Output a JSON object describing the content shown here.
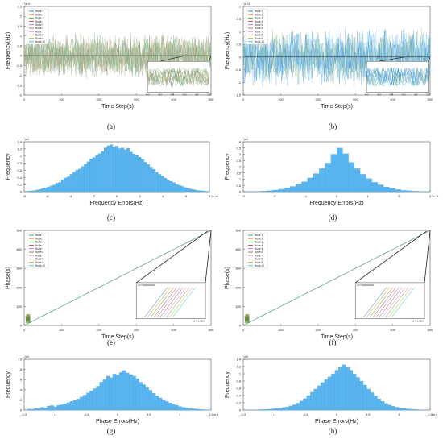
{
  "panels": [
    {
      "id": "a",
      "caption": "(a)",
      "type": "line",
      "xlabel": "Time Step(s)",
      "ylabel": "Frequency(Hz)",
      "xticks": [
        "0",
        "100",
        "200",
        "300",
        "400",
        "500"
      ],
      "yticks": [
        "2.5",
        "2",
        "1.5",
        "1",
        "0.5",
        "0",
        "-0.5",
        "-1",
        "-1.5",
        "-2"
      ],
      "exponent": "1e-9",
      "legend": [
        "Node 1",
        "Node 2",
        "Node 3",
        "Node 4",
        "Node 5",
        "Node 6",
        "Node 7",
        "Node 8",
        "Node 9",
        "Node 10"
      ],
      "inset_xticks": [
        "400",
        "420",
        "440",
        "460",
        "480",
        "500"
      ]
    },
    {
      "id": "b",
      "caption": "(b)",
      "type": "line",
      "xlabel": "Time Step(s)",
      "ylabel": "Frequency(Hz)",
      "xticks": [
        "0",
        "100",
        "200",
        "300",
        "400",
        "500"
      ],
      "yticks": [
        "2",
        "1.5",
        "1",
        "0.5",
        "0",
        "-0.5",
        "-1",
        "-1.5"
      ],
      "exponent": "1e-11",
      "legend": [
        "Node 1",
        "Node 2",
        "Node 3",
        "Node 4",
        "Node 5",
        "Node 6",
        "Node 7",
        "Node 8",
        "Node 9",
        "Node 10"
      ],
      "inset_xticks": [
        "400",
        "420",
        "440",
        "460",
        "480",
        "500"
      ]
    },
    {
      "id": "c",
      "caption": "(c)",
      "type": "histogram",
      "xlabel": "Frequency Errors(Hz)",
      "ylabel": "Frequency",
      "xticks": [
        "-8",
        "-6",
        "-4",
        "-2",
        "0",
        "2",
        "4",
        "6",
        "8"
      ],
      "yticks": [
        "1.4",
        "1.2",
        "1",
        "0.8",
        "0.6",
        "0.4",
        "0.2",
        "0"
      ],
      "exponent_x": "1e-10",
      "exponent_y": "1e4"
    },
    {
      "id": "d",
      "caption": "(d)",
      "type": "histogram",
      "xlabel": "Frequency Errors(Hz)",
      "ylabel": "Frequency",
      "xticks": [
        "-3",
        "-2",
        "-1",
        "0",
        "1",
        "2",
        "3"
      ],
      "yticks": [
        "4",
        "3.5",
        "3",
        "2.5",
        "2",
        "1.5",
        "1",
        "0.5",
        "0"
      ],
      "exponent_x": "1e-11",
      "exponent_y": "1e4"
    },
    {
      "id": "e",
      "caption": "(e)",
      "type": "line",
      "xlabel": "Time Step(s)",
      "ylabel": "Phase(s)",
      "xticks": [
        "0",
        "100",
        "200",
        "300",
        "400",
        "500"
      ],
      "yticks": [
        "500",
        "400",
        "300",
        "200",
        "100",
        "0"
      ],
      "legend": [
        "Node 1",
        "Node 2",
        "Node 3",
        "Node 4",
        "Node 5",
        "Node 6",
        "Node 7",
        "Node 8",
        "Node 9",
        "Node 10"
      ],
      "inset_note": "At t=1000000000s",
      "inset_xlabel": "1e-9+1.89e2"
    },
    {
      "id": "f",
      "caption": "(f)",
      "type": "line",
      "xlabel": "Time Step(s)",
      "ylabel": "Phase(s)",
      "xticks": [
        "0",
        "100",
        "200",
        "300",
        "400",
        "500"
      ],
      "yticks": [
        "500",
        "400",
        "300",
        "200",
        "100",
        "0"
      ],
      "legend": [
        "Node 1",
        "Node 2",
        "Node 3",
        "Node 4",
        "Node 5",
        "Node 6",
        "Node 7",
        "Node 8",
        "Node 9",
        "Node 10"
      ],
      "inset_note": "At t=1000000000s",
      "inset_xlabel": "1e-9+1.89e2"
    },
    {
      "id": "g",
      "caption": "(g)",
      "type": "histogram",
      "xlabel": "Phase Errors(Hz)",
      "ylabel": "Frequency",
      "xticks": [
        "-1.5",
        "-1",
        "-0.5",
        "0",
        "0.5",
        "1",
        "1.5"
      ],
      "yticks": [
        "10",
        "8",
        "6",
        "4",
        "2",
        "0"
      ],
      "exponent_x": "1e-9",
      "exponent_y": "1e4"
    },
    {
      "id": "h",
      "caption": "(h)",
      "type": "histogram",
      "xlabel": "Phase Errors(Hz)",
      "ylabel": "Frequency",
      "xticks": [
        "-1.5",
        "-1",
        "-0.5",
        "0",
        "0.5",
        "1",
        "1.5"
      ],
      "yticks": [
        "1.4",
        "1.2",
        "1",
        "0.8",
        "0.6",
        "0.4",
        "0.2",
        "0"
      ],
      "exponent_x": "1e-9",
      "exponent_y": "1e5"
    }
  ],
  "chart_data": [
    {
      "type": "line",
      "panel": "a",
      "xlabel": "Time Step(s)",
      "ylabel": "Frequency(Hz)",
      "xlim": [
        0,
        500
      ],
      "ylim": [
        -2e-09,
        2.5e-09
      ],
      "series_names": [
        "Node 1",
        "Node 2",
        "Node 3",
        "Node 4",
        "Node 5",
        "Node 6",
        "Node 7",
        "Node 8",
        "Node 9",
        "Node 10"
      ],
      "description_values": {
        "mean": 0,
        "spread": 1.2e-09
      }
    },
    {
      "type": "line",
      "panel": "b",
      "xlabel": "Time Step(s)",
      "ylabel": "Frequency(Hz)",
      "xlim": [
        0,
        500
      ],
      "ylim": [
        -1.5e-11,
        2e-11
      ],
      "series_names": [
        "Node 1",
        "Node 2",
        "Node 3",
        "Node 4",
        "Node 5",
        "Node 6",
        "Node 7",
        "Node 8",
        "Node 9",
        "Node 10"
      ],
      "description_values": {
        "mean": 0,
        "spread": 1.2e-11
      }
    },
    {
      "type": "bar",
      "panel": "c",
      "xlabel": "Frequency Errors(Hz)",
      "ylabel": "Frequency",
      "xlim": [
        -9,
        9
      ],
      "ylim": [
        0,
        14000
      ],
      "bin_values": [
        100,
        150,
        250,
        300,
        500,
        650,
        900,
        1000,
        1300,
        1600,
        1900,
        2400,
        2600,
        3300,
        3900,
        4200,
        4900,
        5500,
        6100,
        6400,
        7100,
        7700,
        8400,
        9200,
        9600,
        10100,
        10700,
        11300,
        12300,
        12900,
        13200,
        12500,
        12800,
        12100,
        12300,
        11800,
        12200,
        11100,
        10600,
        10300,
        9700,
        9100,
        8300,
        7600,
        6900,
        6300,
        5500,
        4900,
        4400,
        3800,
        3300,
        2900,
        2600,
        2100,
        1800,
        1500,
        1200,
        900,
        750,
        600,
        400,
        300,
        250,
        150,
        100
      ]
    },
    {
      "type": "bar",
      "panel": "d",
      "xlabel": "Frequency Errors(Hz)",
      "ylabel": "Frequency",
      "xlim": [
        -3.5,
        3.5
      ],
      "ylim": [
        0,
        40000
      ],
      "bin_values": [
        100,
        200,
        300,
        500,
        800,
        1300,
        2000,
        3000,
        4200,
        6000,
        8000,
        11000,
        14500,
        18500,
        23000,
        30000,
        35000,
        30500,
        23500,
        18500,
        14000,
        10500,
        7500,
        5500,
        3800,
        2600,
        1700,
        1100,
        700,
        400,
        250,
        150
      ]
    },
    {
      "type": "line",
      "panel": "e",
      "xlabel": "Time Step(s)",
      "ylabel": "Phase(s)",
      "xlim": [
        0,
        500
      ],
      "ylim": [
        0,
        500
      ],
      "series_names": [
        "Node 1",
        "Node 2",
        "Node 3",
        "Node 4",
        "Node 5",
        "Node 6",
        "Node 7",
        "Node 8",
        "Node 9",
        "Node 10"
      ],
      "x": [
        0,
        500
      ],
      "y": [
        0,
        500
      ]
    },
    {
      "type": "line",
      "panel": "f",
      "xlabel": "Time Step(s)",
      "ylabel": "Phase(s)",
      "xlim": [
        0,
        500
      ],
      "ylim": [
        0,
        500
      ],
      "series_names": [
        "Node 1",
        "Node 2",
        "Node 3",
        "Node 4",
        "Node 5",
        "Node 6",
        "Node 7",
        "Node 8",
        "Node 9",
        "Node 10"
      ],
      "x": [
        0,
        500
      ],
      "y": [
        0,
        500
      ]
    },
    {
      "type": "bar",
      "panel": "g",
      "xlabel": "Phase Errors(Hz)",
      "ylabel": "Frequency",
      "xlim": [
        -1.7,
        1.7
      ],
      "ylim": [
        0,
        100000
      ],
      "bin_values": [
        500,
        2000,
        1500,
        3500,
        3000,
        5500,
        4000,
        8000,
        9000,
        6500,
        9500,
        10500,
        12000,
        14500,
        17000,
        19000,
        22000,
        26000,
        29500,
        34000,
        38000,
        42000,
        47000,
        55000,
        60000,
        67000,
        64000,
        71000,
        69000,
        74000,
        78000,
        73000,
        70000,
        67000,
        62000,
        55000,
        50000,
        44000,
        39000,
        33000,
        28000,
        24000,
        20000,
        17000,
        14000,
        11500,
        9500,
        7000,
        5500,
        4500,
        3500,
        2500,
        2000,
        1400,
        1000,
        600,
        400
      ]
    },
    {
      "type": "bar",
      "panel": "h",
      "xlabel": "Phase Errors(Hz)",
      "ylabel": "Frequency",
      "xlim": [
        -1.7,
        1.7
      ],
      "ylim": [
        0,
        140000
      ],
      "bin_values": [
        300,
        500,
        800,
        900,
        1200,
        1600,
        2000,
        2600,
        3400,
        4300,
        5500,
        7000,
        9000,
        11500,
        14500,
        19000,
        25000,
        32000,
        40000,
        49000,
        58000,
        67000,
        76000,
        84000,
        92000,
        100000,
        110000,
        118000,
        125000,
        118000,
        110000,
        100000,
        90000,
        80000,
        69000,
        58000,
        48000,
        39000,
        31000,
        24000,
        18500,
        14000,
        10500,
        8000,
        6000,
        4500,
        3300,
        2400,
        1700,
        1200,
        800,
        500,
        300
      ]
    }
  ],
  "colors": {
    "hist": "#5ab4ee",
    "axis": "#555555",
    "nodes": [
      "#1f77b4",
      "#ff7f0e",
      "#2ca02c",
      "#d62728",
      "#9467bd",
      "#8c564b",
      "#e377c2",
      "#7f7f7f",
      "#bcbd22",
      "#17becf"
    ]
  }
}
